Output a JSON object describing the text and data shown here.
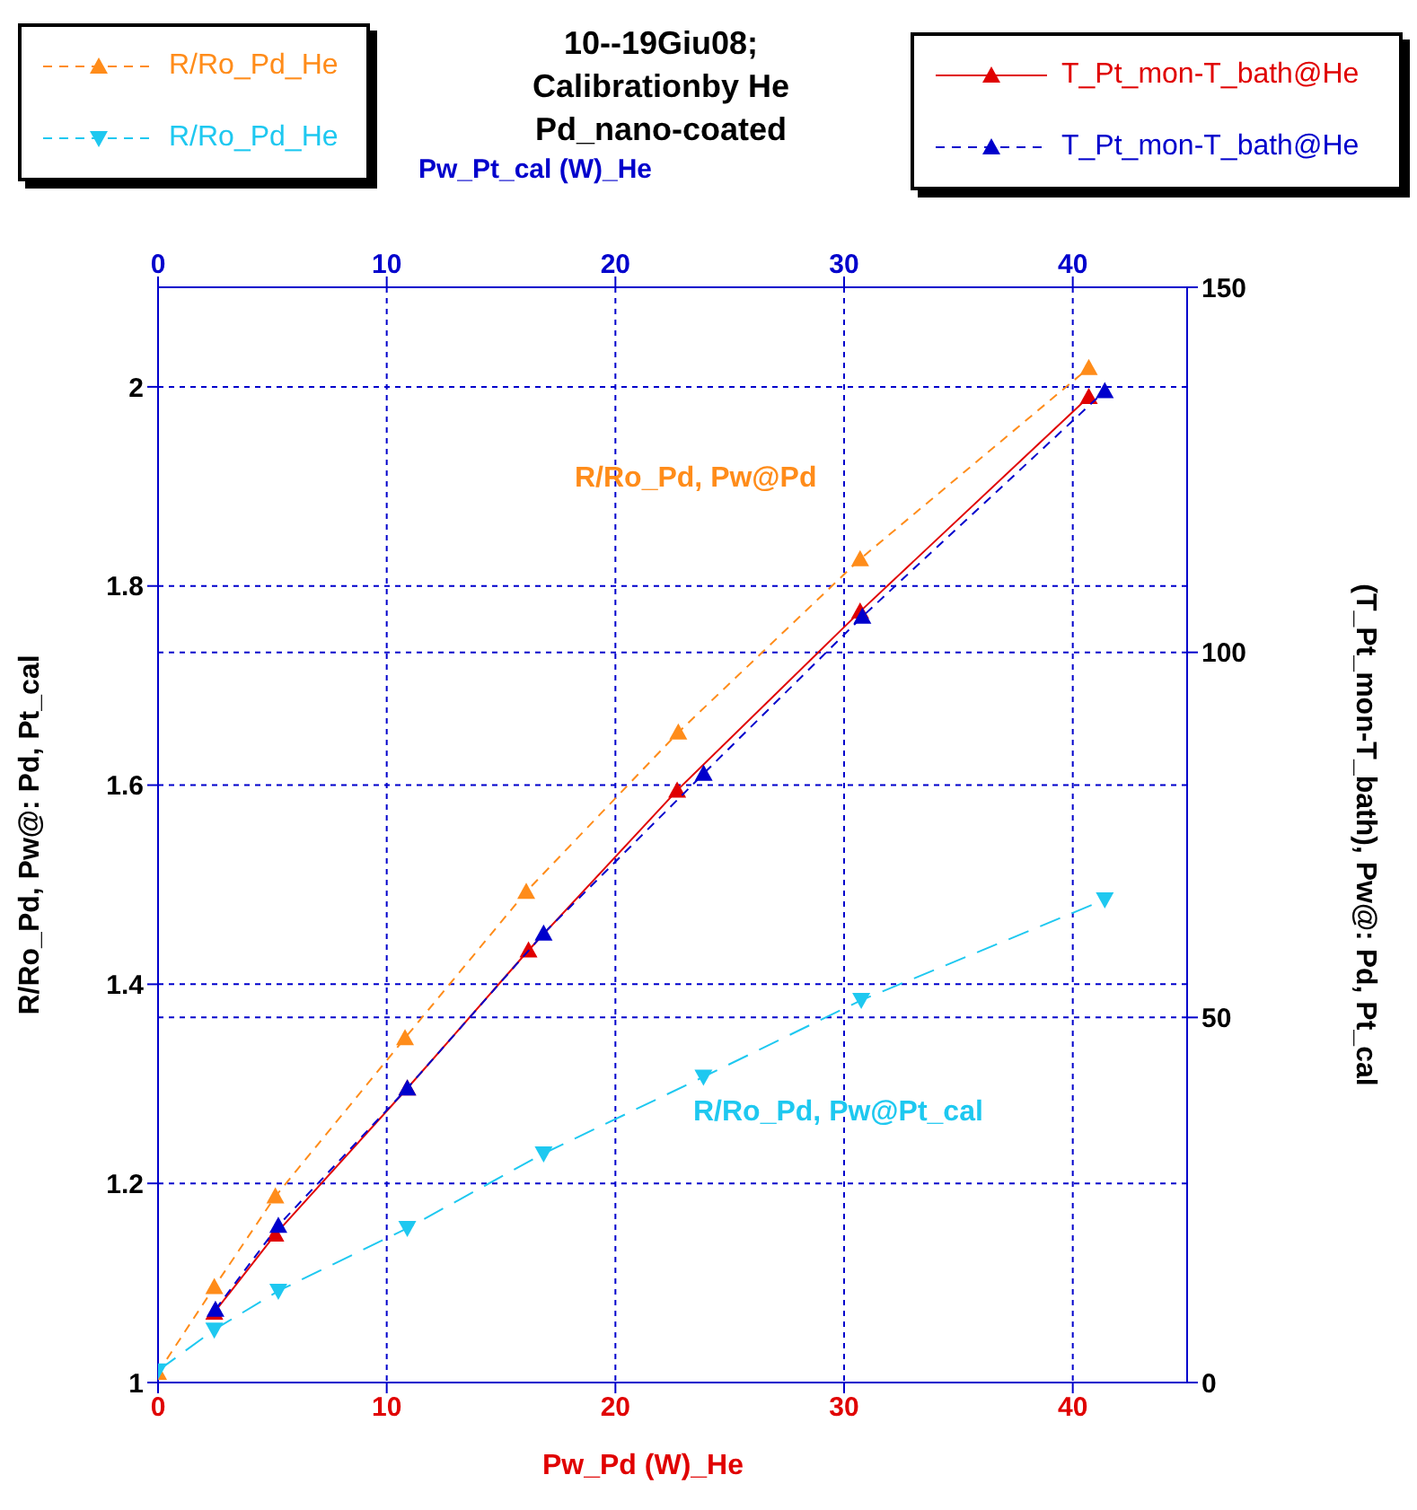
{
  "chart_data": {
    "type": "line",
    "title": "10--19Giu08;\nCalibrationby He\nPd_nano-coated",
    "xlabel": "Pw_Pd (W)_He",
    "x2label": "Pw_Pt_cal (W)_He",
    "ylabel": "R/Ro_Pd, Pw@: Pd, Pt_cal",
    "y2label": "(T_Pt_mon-T_bath), Pw@: Pd, Pt_cal",
    "xlim": [
      0,
      45
    ],
    "xticks": [
      0,
      10,
      20,
      30,
      40
    ],
    "x2lim": [
      0,
      45
    ],
    "x2ticks": [
      0,
      10,
      20,
      30,
      40
    ],
    "ylim": [
      1,
      2.1
    ],
    "yticks": [
      1,
      1.2,
      1.4,
      1.6,
      1.8,
      2
    ],
    "y2lim": [
      0,
      150
    ],
    "y2ticks": [
      0,
      50,
      100,
      150
    ],
    "grid": true,
    "legend": "top",
    "series": [
      {
        "name": "R/Ro_Pd_He",
        "color": "#ff8c1a",
        "marker": "triangle",
        "line_style": "dashed",
        "x": [
          0,
          2.46,
          5.13,
          10.8,
          16.1,
          22.75,
          30.7,
          40.7
        ],
        "values": [
          1.01,
          1.096,
          1.187,
          1.346,
          1.493,
          1.653,
          1.827,
          2.019
        ]
      },
      {
        "name": "R/Ro_Pd_He",
        "color": "#1ec8f0",
        "marker": "triangle-down",
        "line_style": "dashed",
        "x": [
          0,
          2.46,
          5.26,
          10.9,
          16.86,
          23.85,
          30.75,
          41.4
        ],
        "values": [
          1.012,
          1.053,
          1.092,
          1.155,
          1.23,
          1.307,
          1.384,
          1.485
        ]
      },
      {
        "name": "T_Pt_mon-T_bath@He",
        "color": "#e00000",
        "marker": "triangle",
        "line_style": "solid",
        "axis": "y2",
        "x": [
          2.46,
          5.13,
          10.9,
          16.2,
          22.7,
          30.7,
          40.7
        ],
        "values": [
          9.6,
          20.3,
          40.3,
          59.2,
          81.1,
          105.6,
          135
        ]
      },
      {
        "name": "T_Pt_mon-T_bath@He",
        "color": "#0000cc",
        "marker": "triangle",
        "line_style": "dashed",
        "axis": "y2",
        "x": [
          2.51,
          5.26,
          10.9,
          16.86,
          23.86,
          30.8,
          41.4
        ],
        "values": [
          10,
          21.5,
          40.3,
          61.5,
          83.4,
          104.9,
          135.8
        ]
      }
    ],
    "annotations": [
      "R/Ro_Pd, Pw@Pd",
      "R/Ro_Pd, Pw@Pt_cal"
    ]
  }
}
